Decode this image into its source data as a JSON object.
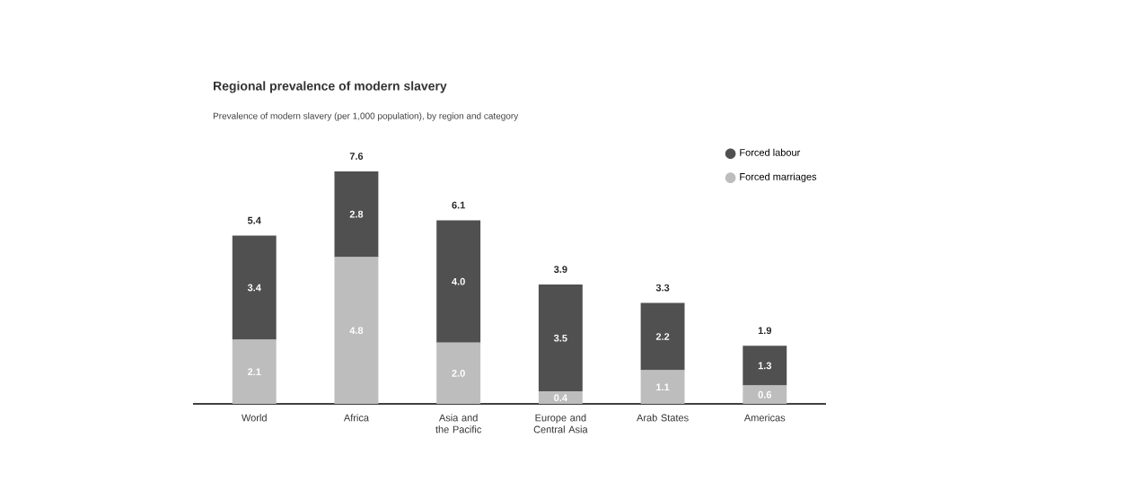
{
  "chart_data": {
    "type": "bar",
    "stacked": true,
    "title": "Regional prevalence of modern slavery",
    "subtitle": "Prevalence of modern slavery (per 1,000 population), by region and category",
    "categories": [
      "World",
      "Africa",
      "Asia and the Pacific",
      "Europe and Central Asia",
      "Arab States",
      "Americas"
    ],
    "series": [
      {
        "name": "Forced marriages",
        "color": "#bdbdbd",
        "values": [
          2.1,
          4.8,
          2.0,
          0.4,
          1.1,
          0.6
        ],
        "value_labels": [
          "2.1",
          "4.8",
          "2.0",
          "0.4",
          "1.1",
          "0.6"
        ]
      },
      {
        "name": "Forced labour",
        "color": "#505050",
        "values": [
          3.4,
          2.8,
          4.0,
          3.5,
          2.2,
          1.3
        ],
        "value_labels": [
          "3.4",
          "2.8",
          "4.0",
          "3.5",
          "2.2",
          "1.3"
        ]
      }
    ],
    "totals": [
      "5.4",
      "7.6",
      "6.1",
      "3.9",
      "3.3",
      "1.9"
    ],
    "legend": "top right"
  }
}
